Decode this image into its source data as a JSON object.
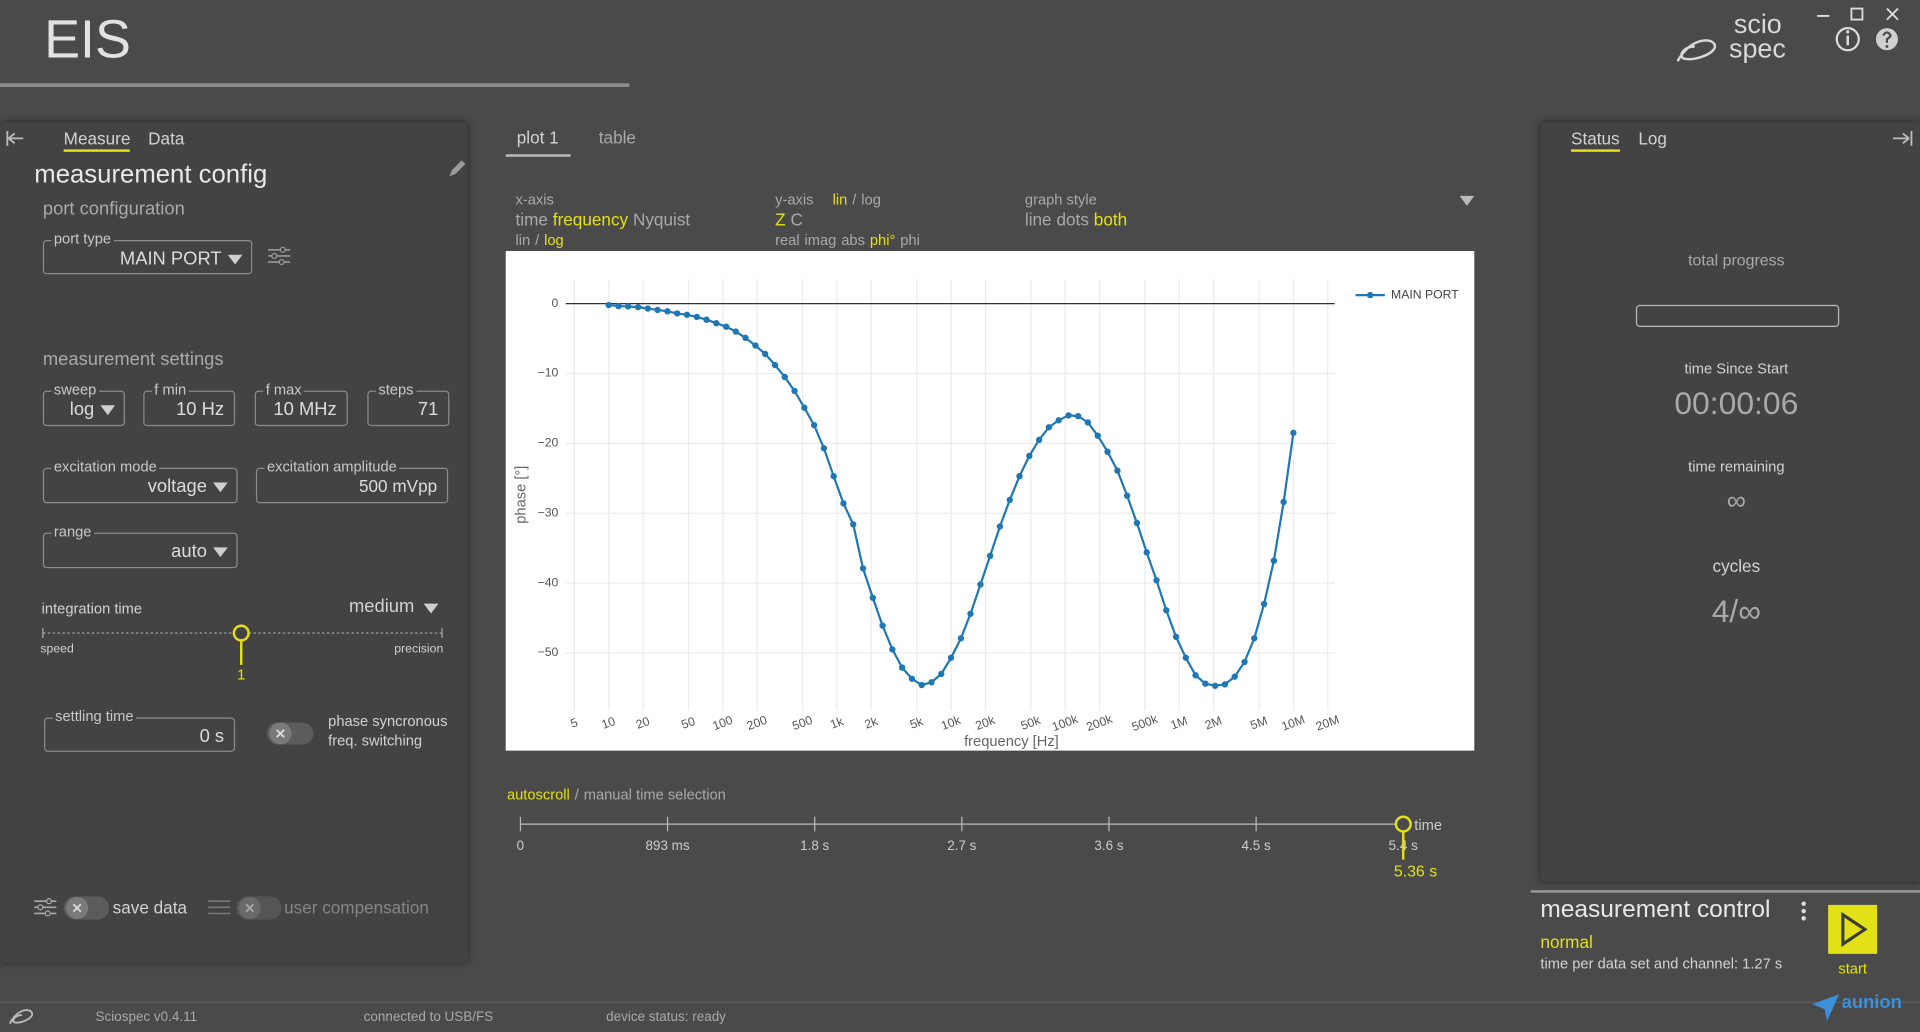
{
  "header": {
    "app_title": "EIS",
    "logo_top": "scio",
    "logo_bottom": "spec"
  },
  "left_panel": {
    "tabs": [
      "Measure",
      "Data"
    ],
    "tab_selected": 0,
    "title": "measurement config",
    "port_section": "port configuration",
    "port_type_label": "port type",
    "port_type": "MAIN PORT",
    "settings_section": "measurement settings",
    "sweep_label": "sweep",
    "sweep": "log",
    "fmin_label": "f min",
    "fmin": "10 Hz",
    "fmax_label": "f max",
    "fmax": "10 MHz",
    "steps_label": "steps",
    "steps": "71",
    "excitation_mode_label": "excitation mode",
    "excitation_mode": "voltage",
    "excitation_amplitude_label": "excitation amplitude",
    "excitation_amplitude": "500 mVpp",
    "range_label": "range",
    "range": "auto",
    "integration_time_label": "integration time",
    "integration_time": "medium",
    "slider_min": "speed",
    "slider_max": "precision",
    "slider_value": "1",
    "settling_time_label": "settling time",
    "settling_time": "0 s",
    "phase_sync": "phase syncronous freq. switching",
    "save_data": "save data",
    "user_compensation": "user compensation"
  },
  "plot_tabs": [
    "plot 1",
    "table"
  ],
  "plot_tab_selected": 0,
  "plot_options": {
    "separator": "/",
    "x_axis": {
      "label": "x-axis",
      "modes": [
        "time",
        "frequency",
        "Nyquist"
      ],
      "mode_selected": 1,
      "scales": [
        "lin",
        "log"
      ],
      "scale_selected": 1
    },
    "y_axis": {
      "label": "y-axis",
      "scales": [
        "lin",
        "log"
      ],
      "scale_selected": 0,
      "quantities": [
        "Z",
        "C"
      ],
      "quantity_selected": 0,
      "components": [
        "real",
        "imag",
        "abs",
        "phi°",
        "phi"
      ],
      "component_selected": 3
    },
    "graph_style": {
      "label": "graph style",
      "styles": [
        "line",
        "dots",
        "both"
      ],
      "style_selected": 2
    }
  },
  "chart_data": {
    "type": "line",
    "x_label": "frequency [Hz]",
    "y_label": "phase [°]",
    "x_log": true,
    "grid": true,
    "legend": "top-right",
    "x": [
      10,
      12.2,
      14.8,
      18.1,
      22,
      26.8,
      32.7,
      39.8,
      48.5,
      59.1,
      72,
      87.7,
      107,
      130,
      158,
      193,
      235,
      287,
      349,
      425,
      518,
      631,
      769,
      936,
      1141,
      1389,
      1693,
      2062,
      2512,
      3060,
      3728,
      4541,
      5532,
      6739,
      8209,
      10000,
      12200,
      14800,
      18100,
      22000,
      26800,
      32700,
      39800,
      48500,
      59100,
      72000,
      87700,
      107000,
      130000,
      158000,
      193000,
      235000,
      287000,
      349000,
      425000,
      518000,
      631000,
      769000,
      936000,
      1141000,
      1389000,
      1693000,
      2062000,
      2512000,
      3060000,
      3728000,
      4541000,
      5532000,
      6739000,
      8209000,
      10000000
    ],
    "series": [
      {
        "name": "MAIN PORT",
        "color": "#1f77b4",
        "values": [
          -0.2,
          -0.35,
          -0.4,
          -0.5,
          -0.7,
          -0.9,
          -1.1,
          -1.4,
          -1.6,
          -1.9,
          -2.3,
          -2.8,
          -3.3,
          -4.0,
          -4.9,
          -6.0,
          -7.2,
          -8.8,
          -10.5,
          -12.5,
          -14.9,
          -17.4,
          -20.7,
          -24.7,
          -28.6,
          -31.6,
          -37.9,
          -42.1,
          -46.1,
          -49.5,
          -52.1,
          -53.7,
          -54.6,
          -54.2,
          -53.0,
          -50.7,
          -47.9,
          -44.4,
          -40.2,
          -36.1,
          -31.9,
          -28.1,
          -24.7,
          -21.8,
          -19.5,
          -17.7,
          -16.7,
          -16.0,
          -16.1,
          -17.0,
          -18.9,
          -21.2,
          -23.9,
          -27.5,
          -31.4,
          -35.6,
          -39.6,
          -43.9,
          -47.7,
          -50.7,
          -53.2,
          -54.4,
          -54.7,
          -54.5,
          -53.4,
          -51.3,
          -47.9,
          -43.0,
          -36.8,
          -28.4,
          -18.5
        ]
      }
    ],
    "xlim": [
      4.2,
      23000000
    ],
    "xticks": [
      5,
      10,
      20,
      50,
      100,
      200,
      500,
      {
        "value": 1000,
        "label": "1k"
      },
      {
        "value": 2000,
        "label": "2k"
      },
      {
        "value": 5000,
        "label": "5k"
      },
      {
        "value": 10000,
        "label": "10k"
      },
      {
        "value": 20000,
        "label": "20k"
      },
      {
        "value": 50000,
        "label": "50k"
      },
      {
        "value": 100000,
        "label": "100k"
      },
      {
        "value": 200000,
        "label": "200k"
      },
      {
        "value": 500000,
        "label": "500k"
      },
      {
        "value": 1000000,
        "label": "1M"
      },
      {
        "value": 2000000,
        "label": "2M"
      },
      {
        "value": 5000000,
        "label": "5M"
      },
      {
        "value": 10000000,
        "label": "10M"
      },
      {
        "value": 20000000,
        "label": "20M"
      }
    ],
    "ylim": [
      -58.2,
      3.5
    ],
    "yticks": [
      0,
      {
        "value": -10,
        "label": "−10"
      },
      {
        "value": -20,
        "label": "−20"
      },
      {
        "value": -30,
        "label": "−30"
      },
      {
        "value": -40,
        "label": "−40"
      },
      {
        "value": -50,
        "label": "−50"
      }
    ]
  },
  "time_selection": {
    "modes": [
      "autoscroll",
      "manual time selection"
    ],
    "mode_selected": 0,
    "ticks": [
      "0",
      "893 ms",
      "1.8 s",
      "2.7 s",
      "3.6 s",
      "4.5 s",
      "5.4 s"
    ],
    "axis_label": "time",
    "current": "5.36 s"
  },
  "status_panel": {
    "tabs": [
      "Status",
      "Log"
    ],
    "tab_selected": 0,
    "total_progress": "total progress",
    "time_since_start_label": "time Since Start",
    "time_since_start": "00:00:06",
    "time_remaining_label": "time remaining",
    "time_remaining": "∞",
    "cycles_label": "cycles",
    "cycles": "4/∞"
  },
  "measurement_control": {
    "title": "measurement control",
    "mode": "normal",
    "time_per_set": "time per data set and channel: 1.27 s",
    "start": "start"
  },
  "footer": {
    "version": "Sciospec v0.4.11",
    "connection": "connected to USB/FS",
    "device_status": "device status: ready",
    "brand": "aunion"
  }
}
